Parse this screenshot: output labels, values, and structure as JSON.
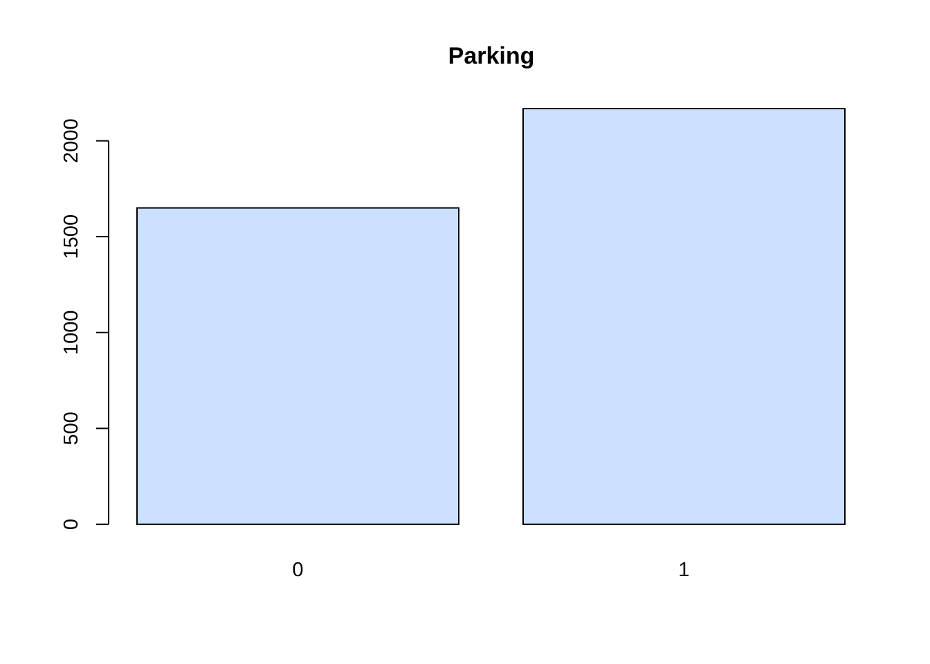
{
  "chart_data": {
    "type": "bar",
    "title": "Parking",
    "xlabel": "",
    "ylabel": "",
    "categories": [
      "0",
      "1"
    ],
    "values": [
      1650,
      2168
    ],
    "ylim": [
      0,
      2168
    ],
    "yticks": [
      0,
      500,
      1000,
      1500,
      2000
    ],
    "ytick_labels": [
      "0",
      "500",
      "1000",
      "1500",
      "2000"
    ],
    "grid": false,
    "legend": "none",
    "colors": {
      "bar_fill": "#cce0ff",
      "bar_stroke": "#000000",
      "axis": "#000000",
      "text": "#000000"
    }
  }
}
